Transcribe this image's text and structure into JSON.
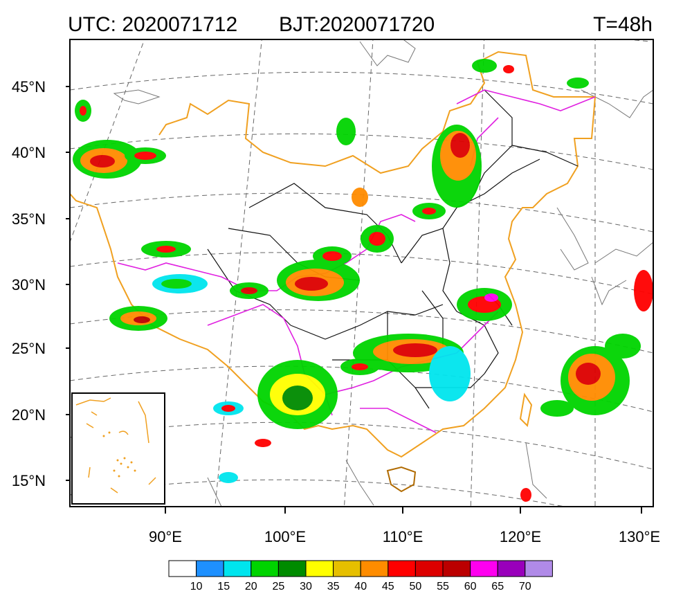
{
  "header": {
    "utc": "UTC: 2020071712",
    "bjt": "BJT:2020071720",
    "lead": "T=48h"
  },
  "axes": {
    "lat_labels": [
      "45°N",
      "40°N",
      "35°N",
      "30°N",
      "25°N",
      "20°N",
      "15°N"
    ],
    "lon_labels": [
      "90°E",
      "100°E",
      "110°E",
      "120°E",
      "130°E"
    ]
  },
  "colorbar": {
    "levels": [
      "10",
      "15",
      "20",
      "25",
      "30",
      "35",
      "40",
      "45",
      "50",
      "55",
      "60",
      "65",
      "70"
    ],
    "colors": [
      "#ffffff",
      "#1e90ff",
      "#00e5ee",
      "#00d400",
      "#008b00",
      "#ffff00",
      "#e6bf00",
      "#ff8c00",
      "#ff0000",
      "#dd0000",
      "#bb0000",
      "#ff00f0",
      "#9900bb",
      "#b08ae8"
    ]
  },
  "map": {
    "projection_lines": "dashed",
    "inset": "south-china-sea"
  }
}
